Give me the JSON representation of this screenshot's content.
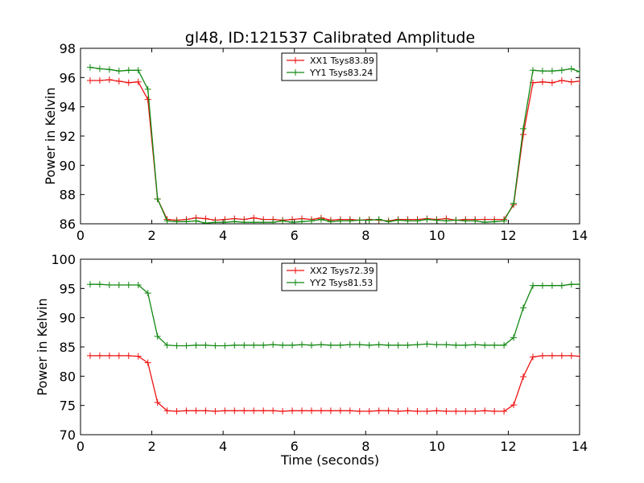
{
  "title": "gl48, ID:121537 Calibrated Amplitude",
  "colors": {
    "red": "#ee1111",
    "green": "#118811"
  },
  "chart_data": [
    {
      "type": "line",
      "xlabel": "",
      "ylabel": "Power in Kelvin",
      "xlim": [
        0,
        14
      ],
      "ylim": [
        86,
        98
      ],
      "xticks": [
        "0",
        "2",
        "4",
        "6",
        "8",
        "10",
        "12",
        "14"
      ],
      "yticks": [
        "86",
        "88",
        "90",
        "92",
        "94",
        "96",
        "98"
      ],
      "grid": false,
      "legend_position": "top-center",
      "x": [
        0.27,
        0.54,
        0.81,
        1.08,
        1.35,
        1.62,
        1.89,
        2.16,
        2.43,
        2.7,
        2.97,
        3.24,
        3.51,
        3.78,
        4.05,
        4.32,
        4.59,
        4.86,
        5.13,
        5.4,
        5.67,
        5.94,
        6.21,
        6.48,
        6.75,
        7.02,
        7.29,
        7.56,
        7.83,
        8.1,
        8.37,
        8.64,
        8.91,
        9.18,
        9.45,
        9.72,
        9.99,
        10.26,
        10.53,
        10.8,
        11.07,
        11.34,
        11.61,
        11.88,
        12.15,
        12.42,
        12.69,
        12.96,
        13.23,
        13.5,
        13.77,
        14.0
      ],
      "series": [
        {
          "name": "XX1 Tsys83.89",
          "color": "#ee1111",
          "values": [
            95.8,
            95.8,
            95.85,
            95.75,
            95.65,
            95.7,
            94.5,
            87.7,
            86.3,
            86.25,
            86.3,
            86.4,
            86.35,
            86.25,
            86.3,
            86.35,
            86.3,
            86.4,
            86.3,
            86.3,
            86.25,
            86.3,
            86.35,
            86.3,
            86.4,
            86.25,
            86.3,
            86.3,
            86.25,
            86.3,
            86.25,
            86.2,
            86.3,
            86.3,
            86.3,
            86.35,
            86.3,
            86.35,
            86.25,
            86.3,
            86.3,
            86.3,
            86.3,
            86.3,
            87.3,
            92.1,
            95.65,
            95.7,
            95.65,
            95.8,
            95.7,
            95.75
          ]
        },
        {
          "name": "YY1 Tsys83.24",
          "color": "#118811",
          "values": [
            96.7,
            96.6,
            96.55,
            96.45,
            96.5,
            96.5,
            95.2,
            87.7,
            86.2,
            86.15,
            86.15,
            86.2,
            86.05,
            86.1,
            86.1,
            86.15,
            86.1,
            86.1,
            86.1,
            86.1,
            86.2,
            86.1,
            86.15,
            86.2,
            86.3,
            86.15,
            86.2,
            86.2,
            86.25,
            86.25,
            86.3,
            86.15,
            86.25,
            86.2,
            86.2,
            86.3,
            86.25,
            86.2,
            86.25,
            86.2,
            86.2,
            86.1,
            86.15,
            86.2,
            87.4,
            92.5,
            96.5,
            96.45,
            96.45,
            96.5,
            96.6,
            96.4
          ]
        }
      ]
    },
    {
      "type": "line",
      "xlabel": "Time (seconds)",
      "ylabel": "Power in Kelvin",
      "xlim": [
        0,
        14
      ],
      "ylim": [
        70,
        100
      ],
      "xticks": [
        "0",
        "2",
        "4",
        "6",
        "8",
        "10",
        "12",
        "14"
      ],
      "yticks": [
        "70",
        "75",
        "80",
        "85",
        "90",
        "95",
        "100"
      ],
      "grid": false,
      "legend_position": "top-center",
      "x": [
        0.27,
        0.54,
        0.81,
        1.08,
        1.35,
        1.62,
        1.89,
        2.16,
        2.43,
        2.7,
        2.97,
        3.24,
        3.51,
        3.78,
        4.05,
        4.32,
        4.59,
        4.86,
        5.13,
        5.4,
        5.67,
        5.94,
        6.21,
        6.48,
        6.75,
        7.02,
        7.29,
        7.56,
        7.83,
        8.1,
        8.37,
        8.64,
        8.91,
        9.18,
        9.45,
        9.72,
        9.99,
        10.26,
        10.53,
        10.8,
        11.07,
        11.34,
        11.61,
        11.88,
        12.15,
        12.42,
        12.69,
        12.96,
        13.23,
        13.5,
        13.77,
        14.0
      ],
      "series": [
        {
          "name": "XX2 Tsys72.39",
          "color": "#ee1111",
          "values": [
            83.5,
            83.5,
            83.5,
            83.5,
            83.5,
            83.4,
            82.3,
            75.5,
            74.1,
            74.0,
            74.1,
            74.1,
            74.1,
            74.0,
            74.1,
            74.1,
            74.1,
            74.1,
            74.1,
            74.1,
            74.0,
            74.1,
            74.1,
            74.1,
            74.1,
            74.1,
            74.1,
            74.1,
            74.0,
            74.0,
            74.1,
            74.1,
            74.0,
            74.1,
            74.0,
            74.0,
            74.1,
            74.0,
            74.0,
            74.0,
            74.0,
            74.1,
            74.0,
            74.0,
            75.1,
            79.9,
            83.3,
            83.5,
            83.5,
            83.5,
            83.5,
            83.4
          ]
        },
        {
          "name": "YY2 Tsys81.53",
          "color": "#118811",
          "values": [
            95.7,
            95.7,
            95.6,
            95.6,
            95.6,
            95.6,
            94.2,
            86.8,
            85.3,
            85.2,
            85.2,
            85.3,
            85.3,
            85.2,
            85.2,
            85.3,
            85.3,
            85.3,
            85.3,
            85.4,
            85.3,
            85.3,
            85.4,
            85.3,
            85.4,
            85.3,
            85.3,
            85.4,
            85.4,
            85.3,
            85.4,
            85.3,
            85.3,
            85.3,
            85.4,
            85.5,
            85.4,
            85.4,
            85.3,
            85.3,
            85.4,
            85.3,
            85.3,
            85.3,
            86.6,
            91.7,
            95.5,
            95.5,
            95.5,
            95.5,
            95.7,
            95.7
          ]
        }
      ]
    }
  ]
}
